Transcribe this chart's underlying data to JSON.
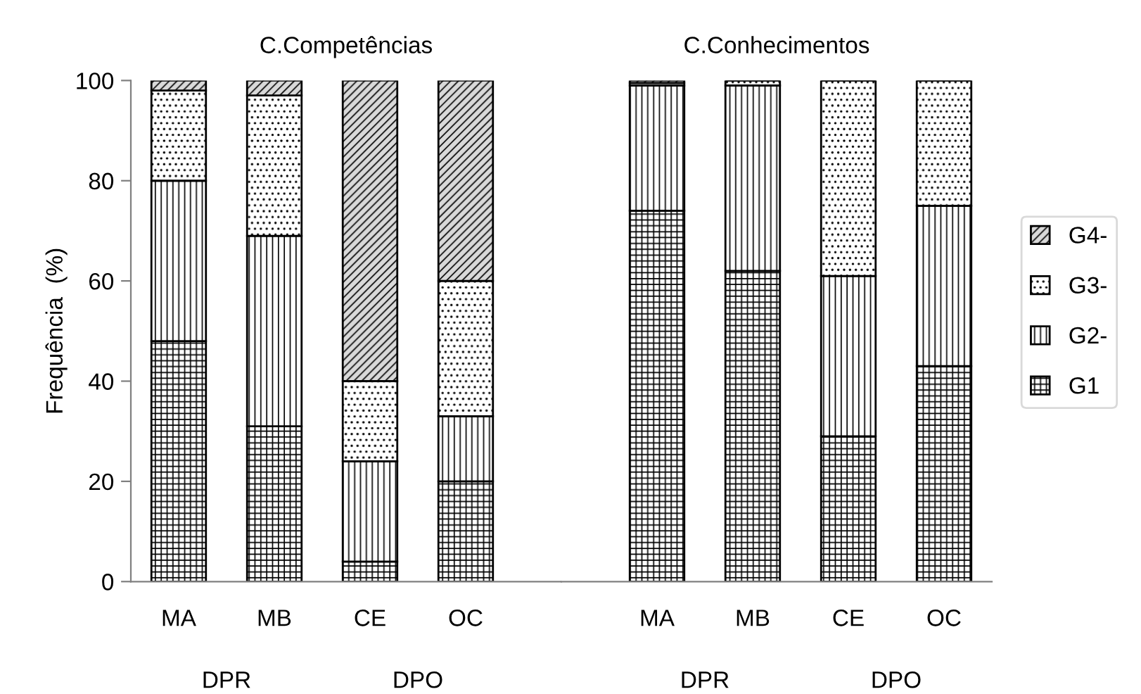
{
  "chart_data": [
    {
      "type": "bar",
      "stacked": true,
      "title": "C.Competências",
      "ylabel": "Frequência  (%)",
      "categories": [
        "MA",
        "MB",
        "CE",
        "OC"
      ],
      "annotations": [
        "DPR",
        "DPO"
      ],
      "ylim": [
        0,
        100
      ],
      "yticks": [
        0,
        20,
        40,
        60,
        80,
        100
      ],
      "grid": false,
      "series": [
        {
          "color": "#000000",
          "values": [
            48,
            31,
            4,
            20
          ]
        },
        {
          "color": "#000000",
          "values": [
            32,
            38,
            20,
            13
          ]
        },
        {
          "color": "#000000",
          "values": [
            18,
            28,
            16,
            27
          ]
        },
        {
          "color": "#000000",
          "values": [
            2,
            3,
            60,
            40
          ]
        }
      ]
    },
    {
      "type": "bar",
      "stacked": true,
      "title": "C.Conhecimentos",
      "categories": [
        "MA",
        "MB",
        "CE",
        "OC"
      ],
      "annotations": [
        "DPR",
        "DPO"
      ],
      "ylim": [
        0,
        100
      ],
      "tick_labels": "x",
      "grid": false,
      "legend": "right",
      "series": [
        {
          "name": "G1",
          "color": "#000000",
          "values": [
            74,
            62,
            29,
            43
          ]
        },
        {
          "name": "G2-",
          "color": "#000000",
          "values": [
            25,
            37,
            32,
            32
          ]
        },
        {
          "name": "G3-",
          "color": "#000000",
          "values": [
            0.5,
            1,
            39,
            25
          ]
        },
        {
          "name": "G4-",
          "color": "#000000",
          "values": [
            0.5,
            0,
            0,
            0
          ]
        }
      ]
    }
  ]
}
